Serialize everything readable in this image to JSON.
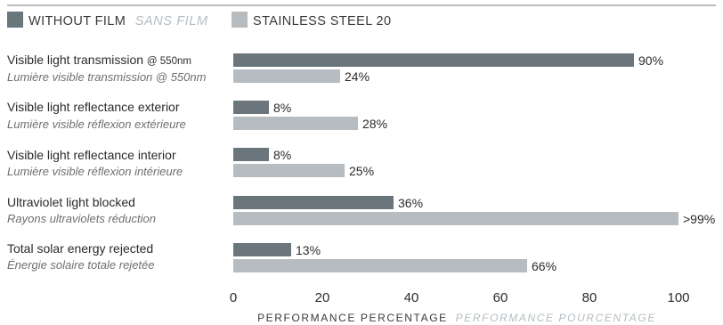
{
  "colors": {
    "series_dark": "#6b757c",
    "series_light": "#b6bcc0",
    "rule": "#7a7a7a"
  },
  "chart_data": {
    "type": "bar",
    "orientation": "horizontal",
    "legend": {
      "position": "top-left",
      "items": [
        {
          "label": "WITHOUT FILM",
          "label_fr": "SANS FILM"
        },
        {
          "label": "STAINLESS STEEL 20",
          "label_fr": ""
        }
      ]
    },
    "categories": [
      {
        "en": "Visible light transmission ",
        "en_small": "@ 550nm",
        "fr": "Lumière visible transmission @ 550nm"
      },
      {
        "en": "Visible light reflectance exterior",
        "en_small": "",
        "fr": "Lumière visible réflexion extérieure"
      },
      {
        "en": "Visible light reflectance interior",
        "en_small": "",
        "fr": "Lumière visible réflexion intérieure"
      },
      {
        "en": "Ultraviolet light blocked",
        "en_small": "",
        "fr": "Rayons ultraviolets réduction"
      },
      {
        "en": "Total solar energy rejected",
        "en_small": "",
        "fr": "Énergie solaire totale rejetée"
      }
    ],
    "series": [
      {
        "name": "WITHOUT FILM",
        "values": [
          90,
          8,
          8,
          36,
          13
        ],
        "labels": [
          "90%",
          "8%",
          "8%",
          "36%",
          "13%"
        ]
      },
      {
        "name": "STAINLESS STEEL 20",
        "values": [
          24,
          28,
          25,
          100,
          66
        ],
        "labels": [
          "24%",
          "28%",
          "25%",
          ">99%",
          "66%"
        ]
      }
    ],
    "xlim": [
      0,
      100
    ],
    "xticks": [
      0,
      20,
      40,
      60,
      80,
      100
    ],
    "xlabel": "PERFORMANCE PERCENTAGE",
    "xlabel_fr": "PERFORMANCE POURCENTAGE",
    "grid": false
  }
}
